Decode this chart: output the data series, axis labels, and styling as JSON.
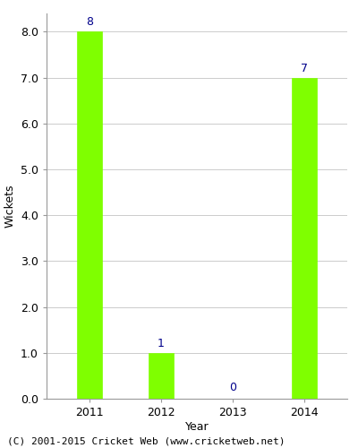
{
  "categories": [
    "2011",
    "2012",
    "2013",
    "2014"
  ],
  "values": [
    8,
    1,
    0,
    7
  ],
  "bar_color": "#7fff00",
  "bar_edgecolor": "#7fff00",
  "xlabel": "Year",
  "ylabel": "Wickets",
  "ylim": [
    0,
    8.4
  ],
  "yticks": [
    0.0,
    1.0,
    2.0,
    3.0,
    4.0,
    5.0,
    6.0,
    7.0,
    8.0
  ],
  "label_color": "#00008b",
  "label_fontsize": 9,
  "axis_label_fontsize": 9,
  "tick_fontsize": 9,
  "footer_text": "(C) 2001-2015 Cricket Web (www.cricketweb.net)",
  "footer_fontsize": 8,
  "background_color": "#ffffff",
  "grid_color": "#cccccc",
  "bar_width": 0.35,
  "spine_color": "#999999"
}
